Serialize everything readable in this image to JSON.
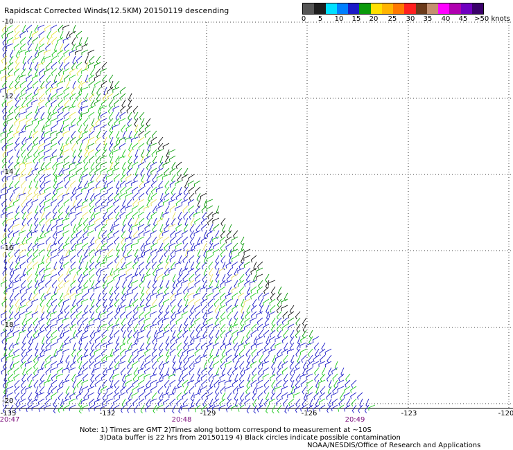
{
  "title": "Rapidscat Corrected Winds(12.5KM) 20150119 descending",
  "scale": {
    "colors": [
      "#555555",
      "#1e1e1e",
      "#00e0ff",
      "#0080ff",
      "#1c1cc8",
      "#0a9a0a",
      "#1ec81e",
      "#ffe000",
      "#ffb400",
      "#ff7800",
      "#ff2020",
      "#cc0000",
      "#6b3a1a",
      "#c49070",
      "#ff00ff",
      "#b000b0",
      "#7000c0",
      "#3a006a",
      "#200040"
    ],
    "labels": [
      "0",
      "5",
      "10",
      "15",
      "20",
      "25",
      "30",
      "35",
      "40",
      "45",
      ">50 knots"
    ]
  },
  "y_axis": {
    "labels": [
      "-10",
      "-12",
      "-14",
      "-16",
      "-18",
      "-20"
    ]
  },
  "x_axis": {
    "labels": [
      "-135",
      "-132",
      "-129",
      "-126",
      "-123",
      "-120"
    ]
  },
  "time_labels": [
    "20:47",
    "20:48",
    "20:49"
  ],
  "notes": {
    "line1": "Note: 1) Times are GMT 2)Times along bottom correspond to measurement at ~10S",
    "line2": "3)Data buffer is 22 hrs from 20150119 4) Black circles indicate possible contamination",
    "line3": "NOAA/NESDIS/Office of Research and Applications"
  },
  "icons": {
    "wind_barb": "wind-barb-icon"
  }
}
